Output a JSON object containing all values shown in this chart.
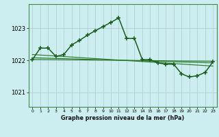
{
  "title": "Graphe pression niveau de la mer (hPa)",
  "bg_color": "#cceef0",
  "grid_color": "#b0d0d0",
  "line_color_main": "#1a5c1a",
  "line_color_trend": "#2d7a2d",
  "xlim": [
    -0.5,
    23.5
  ],
  "ylim": [
    1020.55,
    1023.75
  ],
  "yticks": [
    1021,
    1022,
    1023
  ],
  "xticks": [
    0,
    1,
    2,
    3,
    4,
    5,
    6,
    7,
    8,
    9,
    10,
    11,
    12,
    13,
    14,
    15,
    16,
    17,
    18,
    19,
    20,
    21,
    22,
    23
  ],
  "main_x": [
    0,
    1,
    2,
    3,
    4,
    5,
    6,
    7,
    8,
    9,
    10,
    11,
    12,
    13,
    14,
    15,
    16,
    17,
    18,
    19,
    20,
    21,
    22,
    23
  ],
  "main_y": [
    1022.02,
    1022.38,
    1022.38,
    1022.12,
    1022.18,
    1022.48,
    1022.62,
    1022.78,
    1022.92,
    1023.05,
    1023.18,
    1023.32,
    1022.68,
    1022.68,
    1022.02,
    1022.02,
    1021.92,
    1021.88,
    1021.88,
    1021.58,
    1021.48,
    1021.52,
    1021.62,
    1021.95
  ],
  "trend1_x": [
    0,
    23
  ],
  "trend1_y": [
    1022.08,
    1021.92
  ],
  "trend2_x": [
    0,
    23
  ],
  "trend2_y": [
    1022.03,
    1021.97
  ],
  "trend3_x": [
    0,
    23
  ],
  "trend3_y": [
    1022.18,
    1021.82
  ]
}
